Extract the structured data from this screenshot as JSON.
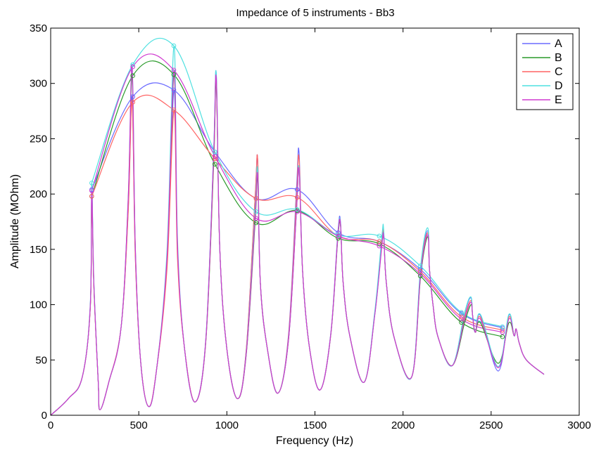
{
  "chart_data": {
    "type": "line",
    "title": "Impedance of 5 instruments - Bb3",
    "xlabel": "Frequency (Hz)",
    "ylabel": "Amplitude (MOhm)",
    "xlim": [
      0,
      3000
    ],
    "ylim": [
      0,
      350
    ],
    "xticks": [
      0,
      500,
      1000,
      1500,
      2000,
      2500,
      3000
    ],
    "yticks": [
      0,
      50,
      100,
      150,
      200,
      250,
      300,
      350
    ],
    "legend_position": "top-right",
    "grid": false,
    "peak_frequencies": [
      233,
      466,
      699,
      932,
      1166,
      1399,
      1632,
      1865,
      2098,
      2331,
      2564
    ],
    "base_curve": {
      "x": [
        0,
        100,
        180,
        225,
        233,
        245,
        270,
        280,
        330,
        400,
        440,
        462,
        480,
        510,
        555,
        600,
        660,
        700,
        720,
        760,
        820,
        880,
        925,
        940,
        960,
        1000,
        1060,
        1110,
        1160,
        1175,
        1190,
        1230,
        1290,
        1350,
        1395,
        1410,
        1430,
        1470,
        1530,
        1590,
        1630,
        1645,
        1660,
        1700,
        1780,
        1840,
        1880,
        1890,
        1905,
        1950,
        2050,
        2100,
        2140,
        2150,
        2170,
        2200,
        2280,
        2350,
        2385,
        2395,
        2410,
        2440,
        2540,
        2600,
        2630,
        2642,
        2660,
        2700,
        2800
      ],
      "y": [
        0,
        15,
        35,
        100,
        205,
        120,
        30,
        5,
        30,
        80,
        190,
        300,
        150,
        50,
        8,
        40,
        140,
        305,
        150,
        60,
        12,
        50,
        150,
        228,
        150,
        60,
        15,
        50,
        150,
        195,
        120,
        60,
        20,
        60,
        150,
        195,
        130,
        60,
        23,
        70,
        150,
        165,
        120,
        70,
        30,
        90,
        150,
        160,
        120,
        70,
        35,
        80,
        120,
        132,
        100,
        70,
        45,
        65,
        85,
        90,
        75,
        60,
        43,
        60,
        72,
        78,
        65,
        50,
        37
      ]
    },
    "series": [
      {
        "name": "A",
        "color": "#6b6bff",
        "peak_values": [
          204,
          288,
          294,
          238,
          196,
          204,
          165,
          157,
          132,
          92,
          79
        ],
        "trough_offsets": [
          0,
          0,
          0,
          0,
          0,
          0,
          0,
          0,
          -3,
          0,
          0
        ]
      },
      {
        "name": "B",
        "color": "#2a9a2a",
        "peak_values": [
          198,
          307,
          308,
          227,
          174,
          185,
          160,
          155,
          126,
          84,
          71
        ],
        "trough_offsets": [
          0,
          0,
          0,
          0,
          0,
          0,
          0,
          0,
          4,
          4,
          0
        ]
      },
      {
        "name": "C",
        "color": "#ff6464",
        "peak_values": [
          198,
          283,
          276,
          232,
          196,
          197,
          162,
          157,
          130,
          89,
          77
        ],
        "trough_offsets": [
          0,
          0,
          0,
          0,
          0,
          0,
          0,
          0,
          0,
          0,
          0
        ]
      },
      {
        "name": "D",
        "color": "#4fe0e0",
        "peak_values": [
          210,
          317,
          334,
          238,
          184,
          186,
          163,
          162,
          135,
          93,
          80
        ],
        "trough_offsets": [
          0,
          0,
          0,
          0,
          0,
          0,
          0,
          0,
          1,
          0,
          0
        ]
      },
      {
        "name": "E",
        "color": "#d03ad0",
        "peak_values": [
          203,
          315,
          312,
          234,
          178,
          184,
          162,
          153,
          128,
          87,
          75
        ],
        "trough_offsets": [
          0,
          0,
          0,
          0,
          0,
          0,
          0,
          0,
          0,
          0,
          0
        ]
      }
    ]
  }
}
